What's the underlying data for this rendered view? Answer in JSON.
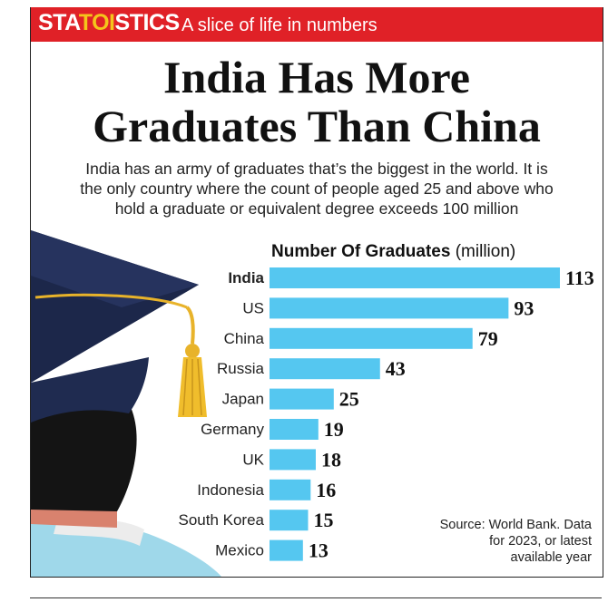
{
  "banner": {
    "brand_pre": "STA",
    "brand_mid": "TOI",
    "brand_post": "STICS",
    "tagline": "A slice of life in numbers"
  },
  "title_line1": "India Has More",
  "title_line2": "Graduates Than China",
  "subtitle_line1": "India has an army of graduates that’s the biggest in the world. It is",
  "subtitle_line2": "the only country where the count of people aged 25 and above who",
  "subtitle_line3": "hold a graduate or equivalent degree exceeds 100 million",
  "chart_heading_bold": "Number Of Graduates",
  "chart_heading_unit": " (million)",
  "source_line1": "Source:  World Bank. Data",
  "source_line2": "for 2023, or latest",
  "source_line3": "available year",
  "colors": {
    "banner": "#e02127",
    "brand_accent": "#f4c51b",
    "bar": "#55c7f0"
  },
  "chart_data": {
    "type": "bar",
    "orientation": "horizontal",
    "title": "Number Of Graduates (million)",
    "categories": [
      "India",
      "US",
      "China",
      "Russia",
      "Japan",
      "Germany",
      "UK",
      "Indonesia",
      "South Korea",
      "Mexico"
    ],
    "values": [
      113,
      93,
      79,
      43,
      25,
      19,
      18,
      16,
      15,
      13
    ],
    "highlight": "India"
  }
}
